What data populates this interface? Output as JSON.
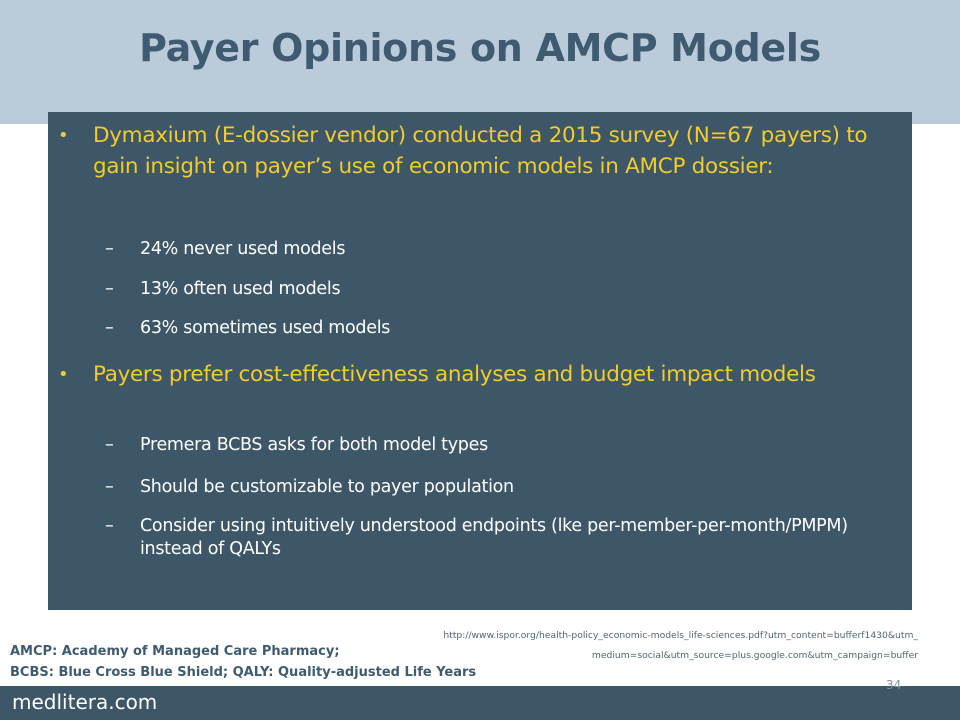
{
  "slide": {
    "title": "Payer Opinions on AMCP Models",
    "bullets": [
      {
        "text": "Dymaxium (E-dossier vendor) conducted a 2015 survey (N=67 payers) to gain insight on payer’s use of economic models in AMCP dossier:",
        "subitems": [
          "24% never used models",
          "13% often used models",
          "63% sometimes used models"
        ]
      },
      {
        "text": "Payers prefer cost-effectiveness analyses and budget impact models",
        "subitems": [
          "Premera BCBS asks for both model types",
          "Should be customizable to payer population",
          "Consider using intuitively understood endpoints (lke per-member-per-month/PMPM) instead of QALYs"
        ]
      }
    ],
    "bullet_glyph": "•",
    "dash_glyph": "–",
    "footnote": {
      "line1": "AMCP: Academy of Managed Care Pharmacy;",
      "line2": "BCBS: Blue Cross Blue Shield; QALY: Quality-adjusted Life Years"
    },
    "source_url": "http://www.ispor.org/health-policy_economic-models_life-sciences.pdf?utm_content=bufferf1430&utm_medium=social&utm_source=plus.google.com&utm_campaign=buffer",
    "brand": "medlitera.com",
    "page_number": "34"
  },
  "colors": {
    "header_band": "#bccbd9",
    "title_text": "#3e5b71",
    "content_box": "#3d5668",
    "bullet_text": "#f1cc2a",
    "subitem_text": "#ffffff",
    "footer_band": "#3d5668"
  }
}
